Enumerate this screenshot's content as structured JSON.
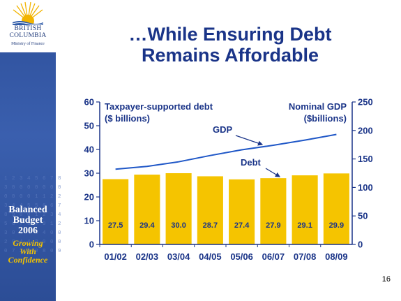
{
  "sidebar": {
    "logo_line1": "BRITISH",
    "logo_line2": "COLUMBIA",
    "ministry": "Ministry of Finance",
    "badge_line1": "Balanced",
    "badge_line2": "Budget",
    "badge_line3": "2006",
    "tag_line1": "Growing",
    "tag_line2": "With",
    "tag_line3": "Confidence"
  },
  "slide": {
    "title_line1": "…While Ensuring Debt",
    "title_line2": "Remains Affordable",
    "page_number": "16"
  },
  "chart_data": {
    "type": "bar",
    "categories": [
      "01/02",
      "02/03",
      "03/04",
      "04/05",
      "05/06",
      "06/07",
      "07/08",
      "08/09"
    ],
    "series": [
      {
        "name": "Debt",
        "values": [
          27.5,
          29.4,
          30.0,
          28.7,
          27.4,
          27.9,
          29.1,
          29.9
        ],
        "axis": "left",
        "color": "#f5c400"
      },
      {
        "name": "GDP",
        "values": [
          132,
          137,
          145,
          156,
          166,
          174,
          183,
          193
        ],
        "axis": "right",
        "type": "line",
        "color": "#1f57c7"
      }
    ],
    "data_labels": [
      "27.5",
      "29.4",
      "30.0",
      "28.7",
      "27.4",
      "27.9",
      "29.1",
      "29.9"
    ],
    "ylabel_left_line1": "Taxpayer-supported debt",
    "ylabel_left_line2": "($ billions)",
    "ylabel_right_line1": "Nominal GDP",
    "ylabel_right_line2": "($billions)",
    "annotations": {
      "gdp": "GDP",
      "debt": "Debt"
    },
    "ylim_left": [
      0,
      60
    ],
    "ylim_right": [
      0,
      250
    ],
    "yticks_left": [
      "0",
      "10",
      "20",
      "30",
      "40",
      "50",
      "60"
    ],
    "yticks_right": [
      "0",
      "50",
      "100",
      "150",
      "200",
      "250"
    ],
    "grid": false,
    "axis_color": "#1a3488",
    "bar_color": "#f5c400",
    "line_color": "#1f57c7"
  }
}
